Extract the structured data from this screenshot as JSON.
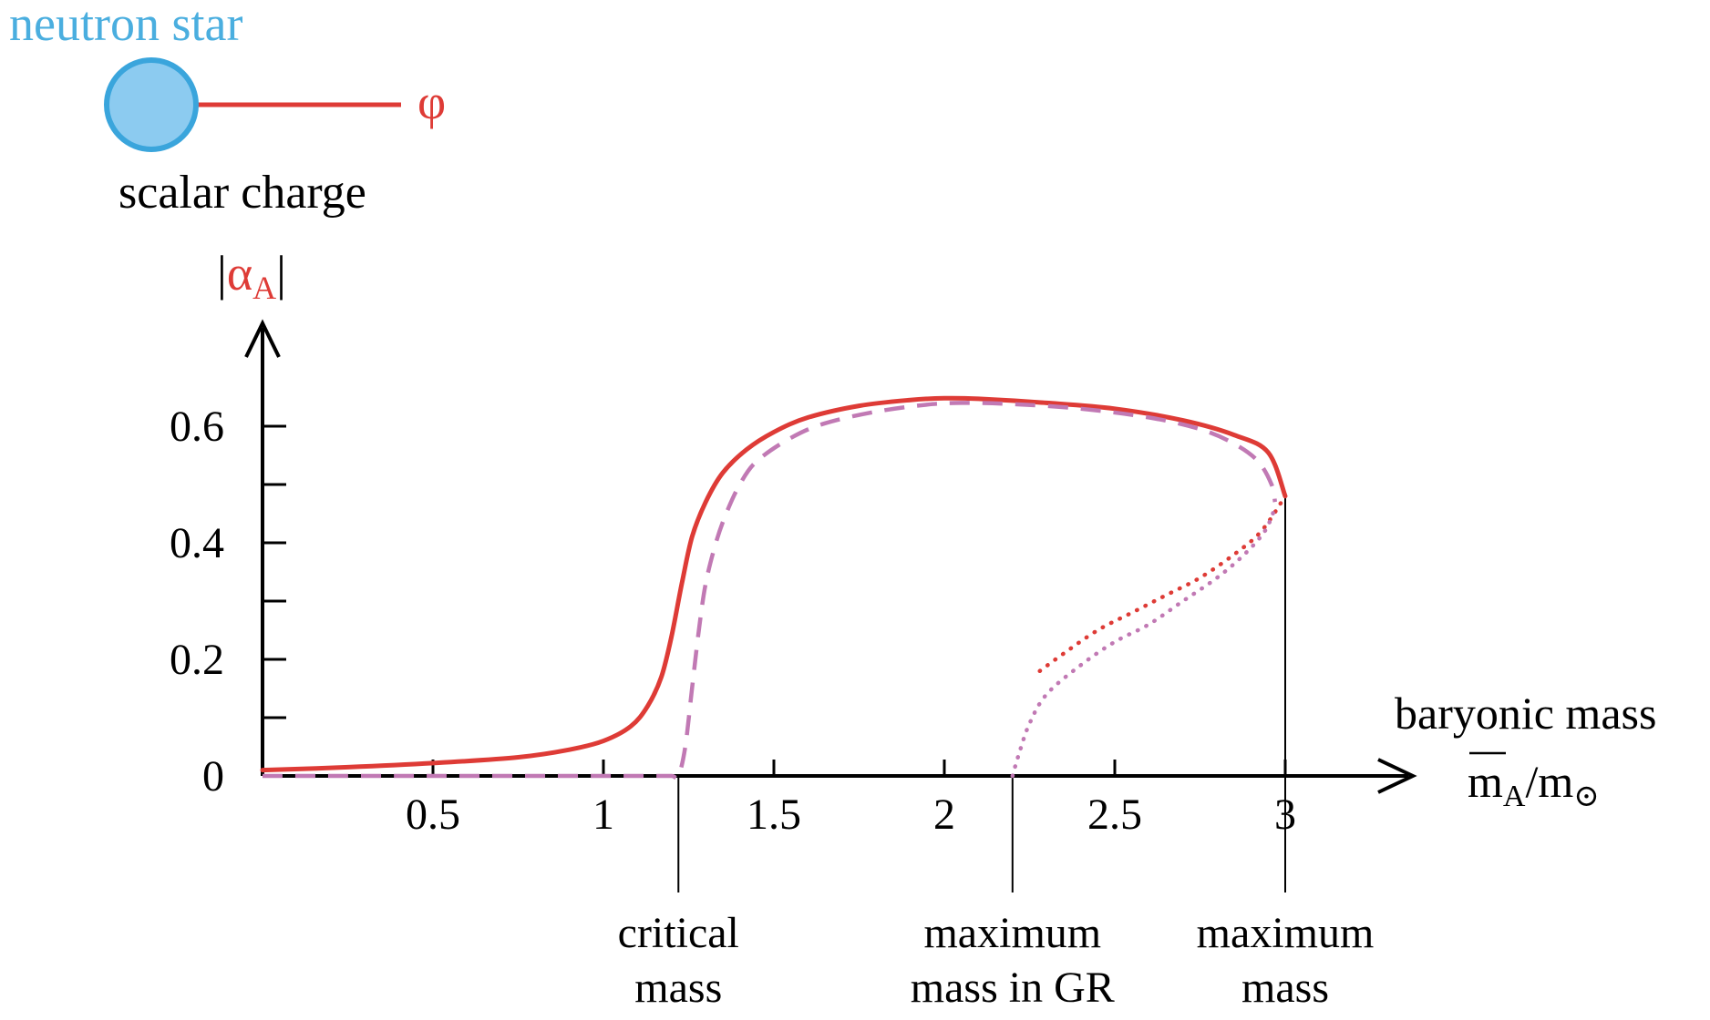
{
  "diagram": {
    "title": "neutron star",
    "field_symbol": "φ",
    "charge_label": "scalar charge",
    "colors": {
      "star_fill": "#8ccbf0",
      "star_stroke": "#3aa5dc",
      "title": "#4aaedf",
      "field": "#de3b36"
    }
  },
  "chart_data": {
    "type": "line",
    "ylabel_parts": {
      "open": "|",
      "symbol": "α",
      "subscript": "A",
      "close": "|"
    },
    "xlabel_line1": "baryonic mass",
    "xlabel_line2_parts": {
      "base": "m",
      "subscript": "A",
      "slash": "/m",
      "sun_subscript": "⊙"
    },
    "x_ticks": [
      {
        "value": 0.5,
        "label": "0.5"
      },
      {
        "value": 1,
        "label": "1"
      },
      {
        "value": 1.5,
        "label": "1.5"
      },
      {
        "value": 2,
        "label": "2"
      },
      {
        "value": 2.5,
        "label": "2.5"
      },
      {
        "value": 3,
        "label": "3"
      }
    ],
    "y_ticks": [
      {
        "value": 0,
        "label": "0"
      },
      {
        "value": 0.1,
        "label": ""
      },
      {
        "value": 0.2,
        "label": "0.2"
      },
      {
        "value": 0.3,
        "label": ""
      },
      {
        "value": 0.4,
        "label": "0.4"
      },
      {
        "value": 0.5,
        "label": ""
      },
      {
        "value": 0.6,
        "label": "0.6"
      }
    ],
    "xlim": [
      0,
      3.4
    ],
    "ylim": [
      0,
      0.75
    ],
    "markers": [
      {
        "x": 1.22,
        "y": 0,
        "lines": [
          "critical",
          "mass"
        ]
      },
      {
        "x": 2.2,
        "y": 0,
        "lines": [
          "maximum",
          "mass in GR"
        ]
      },
      {
        "x": 3.0,
        "y": 0.48,
        "lines": [
          "maximum",
          "mass"
        ]
      }
    ],
    "series": [
      {
        "style": "solid",
        "color": "#de3b36",
        "x": [
          0,
          0.25,
          0.5,
          0.75,
          0.9,
          1.0,
          1.08,
          1.13,
          1.17,
          1.2,
          1.23,
          1.26,
          1.3,
          1.35,
          1.42,
          1.5,
          1.6,
          1.75,
          1.9,
          2.0,
          2.1,
          2.3,
          2.5,
          2.7,
          2.85,
          2.95,
          3.0
        ],
        "y": [
          0.01,
          0.015,
          0.022,
          0.032,
          0.045,
          0.06,
          0.085,
          0.12,
          0.17,
          0.24,
          0.33,
          0.41,
          0.47,
          0.52,
          0.56,
          0.59,
          0.615,
          0.635,
          0.645,
          0.648,
          0.647,
          0.64,
          0.63,
          0.61,
          0.585,
          0.555,
          0.48
        ]
      },
      {
        "style": "dashed",
        "color": "#c179b4",
        "x": [
          0,
          0.5,
          1.0,
          1.15,
          1.2,
          1.22,
          1.24,
          1.26,
          1.28,
          1.3,
          1.33,
          1.36,
          1.4,
          1.45,
          1.55,
          1.65,
          1.8,
          1.95,
          2.05,
          2.2,
          2.4,
          2.6,
          2.75,
          2.85,
          2.92,
          2.96,
          2.97
        ],
        "y": [
          0,
          0,
          0,
          0,
          0,
          0.0,
          0.05,
          0.15,
          0.25,
          0.33,
          0.4,
          0.45,
          0.5,
          0.54,
          0.58,
          0.605,
          0.625,
          0.637,
          0.64,
          0.638,
          0.63,
          0.615,
          0.595,
          0.57,
          0.54,
          0.5,
          0.47
        ]
      },
      {
        "style": "dotted",
        "color": "#de3b36",
        "x": [
          2.28,
          2.35,
          2.45,
          2.55,
          2.65,
          2.75,
          2.85,
          2.93,
          3.0
        ],
        "y": [
          0.18,
          0.21,
          0.25,
          0.28,
          0.31,
          0.34,
          0.38,
          0.42,
          0.48
        ]
      },
      {
        "style": "dotted",
        "color": "#c179b4",
        "x": [
          2.2,
          2.22,
          2.25,
          2.3,
          2.4,
          2.5,
          2.6,
          2.7,
          2.8,
          2.88,
          2.94,
          2.97
        ],
        "y": [
          0.0,
          0.04,
          0.09,
          0.14,
          0.19,
          0.23,
          0.26,
          0.3,
          0.34,
          0.38,
          0.42,
          0.46
        ]
      }
    ]
  }
}
